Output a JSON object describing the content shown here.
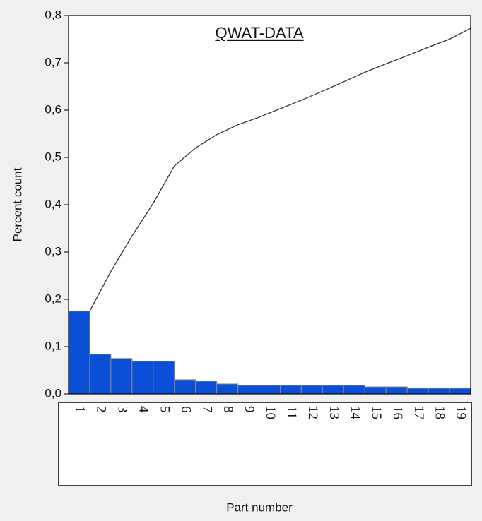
{
  "chart_data": {
    "type": "pareto",
    "title": "QWAT-DATA",
    "y_label": "Percent count",
    "x_label": "Part number",
    "categories": [
      "1",
      "2",
      "3",
      "4",
      "5",
      "6",
      "7",
      "8",
      "9",
      "10",
      "11",
      "12",
      "13",
      "14",
      "15",
      "16",
      "17",
      "18",
      "19"
    ],
    "series": [
      {
        "type": "bar",
        "color": "#0a4fd6",
        "values": [
          0.175,
          0.084,
          0.075,
          0.069,
          0.069,
          0.03,
          0.027,
          0.021,
          0.018,
          0.018,
          0.018,
          0.018,
          0.018,
          0.018,
          0.015,
          0.015,
          0.012,
          0.012,
          0.012
        ]
      },
      {
        "type": "line",
        "color": "#333333",
        "values": [
          0.175,
          0.259,
          0.334,
          0.403,
          0.482,
          0.52,
          0.548,
          0.569,
          0.585,
          0.603,
          0.621,
          0.64,
          0.66,
          0.68,
          0.698,
          0.715,
          0.733,
          0.75,
          0.773
        ]
      }
    ],
    "ylim": [
      0,
      0.8
    ],
    "yticks": [
      {
        "value": 0,
        "label": "0,0"
      },
      {
        "value": 0.1,
        "label": "0,1"
      },
      {
        "value": 0.2,
        "label": "0,2"
      },
      {
        "value": 0.3,
        "label": "0,3"
      },
      {
        "value": 0.4,
        "label": "0,4"
      },
      {
        "value": 0.5,
        "label": "0,5"
      },
      {
        "value": 0.6,
        "label": "0,6"
      },
      {
        "value": 0.7,
        "label": "0,7"
      },
      {
        "value": 0.8,
        "label": "0,8"
      }
    ]
  }
}
